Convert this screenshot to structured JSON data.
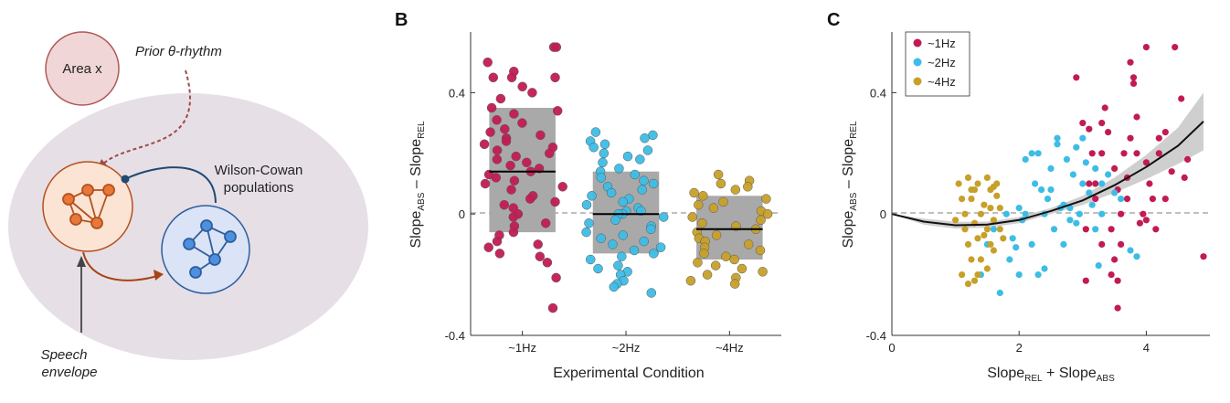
{
  "colors": {
    "c1hz": "#c21b54",
    "c2hz": "#3dbde6",
    "c4hz": "#c7a029",
    "box": "#a9a9a9",
    "band": "#cfcfcf",
    "ellipse": "#e6dfe6",
    "areaFill": "#f0d6d6",
    "areaStroke": "#b05858",
    "orangeFill": "#fbe4d4",
    "orangeNode": "#e8783a",
    "orangeStroke": "#b4501e",
    "blueFill": "#dbe3f6",
    "blueNode": "#4f8fdf",
    "blueStroke": "#2d5f9c",
    "teal": "#1f4a72",
    "rust": "#a64415"
  },
  "diagram": {
    "area_label": "Area x",
    "prior_label": "Prior θ-rhythm",
    "wc_line1": "Wilson-Cowan",
    "wc_line2": "populations",
    "speech_line1": "Speech",
    "speech_line2": "envelope",
    "icons": [
      "orange-network-icon",
      "blue-network-icon"
    ]
  },
  "chart_data": [
    {
      "panel": "B",
      "type": "scatter",
      "title": "",
      "xlabel": "Experimental Condition",
      "ylabel": {
        "main": "Slope",
        "sub1": "ABS",
        "mid": " – Slope",
        "sub2": "REL"
      },
      "ylim": [
        -0.4,
        0.6
      ],
      "yticks": [
        -0.4,
        0,
        0.4
      ],
      "ytick_labels": [
        "-0.4",
        "0",
        "0.4"
      ],
      "categories": [
        "~1Hz",
        "~2Hz",
        "~4Hz"
      ],
      "zero_line": "dashed",
      "boxes": [
        {
          "category": "~1Hz",
          "q1": -0.06,
          "median": 0.14,
          "q3": 0.35
        },
        {
          "category": "~2Hz",
          "q1": -0.13,
          "median": 0.0,
          "q3": 0.14
        },
        {
          "category": "~4Hz",
          "q1": -0.15,
          "median": -0.05,
          "q3": 0.06
        }
      ],
      "series": [
        {
          "name": "~1Hz",
          "values": [
            0.55,
            0.55,
            0.5,
            0.47,
            0.45,
            0.45,
            0.45,
            0.42,
            0.4,
            0.38,
            0.35,
            0.34,
            0.33,
            0.31,
            0.3,
            0.28,
            0.27,
            0.26,
            0.25,
            0.24,
            0.23,
            0.22,
            0.21,
            0.2,
            0.19,
            0.18,
            0.17,
            0.16,
            0.15,
            0.14,
            0.13,
            0.12,
            0.11,
            0.1,
            0.09,
            0.08,
            0.06,
            0.05,
            0.04,
            0.03,
            0.02,
            0.0,
            -0.01,
            -0.03,
            -0.04,
            -0.06,
            -0.07,
            -0.09,
            -0.1,
            -0.11,
            -0.13,
            -0.14,
            -0.16,
            -0.21,
            -0.31
          ]
        },
        {
          "name": "~2Hz",
          "values": [
            0.27,
            0.26,
            0.25,
            0.24,
            0.23,
            0.22,
            0.21,
            0.2,
            0.19,
            0.18,
            0.17,
            0.15,
            0.14,
            0.13,
            0.12,
            0.11,
            0.1,
            0.09,
            0.08,
            0.07,
            0.06,
            0.05,
            0.04,
            0.03,
            0.02,
            0.01,
            0.01,
            0.0,
            0.0,
            -0.01,
            -0.02,
            -0.03,
            -0.04,
            -0.05,
            -0.06,
            -0.07,
            -0.08,
            -0.09,
            -0.1,
            -0.11,
            -0.12,
            -0.13,
            -0.14,
            -0.15,
            -0.17,
            -0.18,
            -0.19,
            -0.2,
            -0.22,
            -0.23,
            -0.24,
            -0.26
          ]
        },
        {
          "name": "~4Hz",
          "values": [
            0.13,
            0.11,
            0.1,
            0.09,
            0.08,
            0.07,
            0.06,
            0.05,
            0.04,
            0.03,
            0.02,
            0.01,
            0.0,
            -0.01,
            -0.02,
            -0.03,
            -0.04,
            -0.05,
            -0.06,
            -0.07,
            -0.08,
            -0.09,
            -0.1,
            -0.11,
            -0.12,
            -0.13,
            -0.14,
            -0.15,
            -0.16,
            -0.17,
            -0.18,
            -0.19,
            -0.2,
            -0.21,
            -0.22,
            -0.23
          ]
        }
      ]
    },
    {
      "panel": "C",
      "type": "scatter",
      "title": "",
      "xlabel": {
        "main": "Slope",
        "sub1": "REL",
        "mid": " + Slope",
        "sub2": "ABS"
      },
      "ylabel": {
        "main": "Slope",
        "sub1": "ABS",
        "mid": " – Slope",
        "sub2": "REL"
      },
      "xlim": [
        0,
        5
      ],
      "ylim": [
        -0.4,
        0.6
      ],
      "xticks": [
        0,
        2,
        4
      ],
      "xtick_labels": [
        "0",
        "2",
        "4"
      ],
      "yticks": [
        -0.4,
        0,
        0.4
      ],
      "ytick_labels": [
        "-0.4",
        "0",
        "0.4"
      ],
      "zero_line": "dashed",
      "legend": {
        "position": "top-left",
        "entries": [
          "~1Hz",
          "~2Hz",
          "~4Hz"
        ]
      },
      "fit": {
        "type": "quadratic",
        "x": [
          0.0,
          0.5,
          1.0,
          1.5,
          2.0,
          2.5,
          3.0,
          3.5,
          4.0,
          4.5,
          4.9
        ],
        "y": [
          0.0,
          -0.025,
          -0.037,
          -0.035,
          -0.02,
          0.01,
          0.045,
          0.095,
          0.155,
          0.225,
          0.305
        ],
        "ci_low": [
          0.0,
          -0.035,
          -0.048,
          -0.045,
          -0.03,
          0.0,
          0.03,
          0.07,
          0.115,
          0.165,
          0.21
        ],
        "ci_high": [
          0.0,
          -0.015,
          -0.026,
          -0.025,
          -0.01,
          0.02,
          0.06,
          0.12,
          0.195,
          0.285,
          0.4
        ]
      },
      "series": [
        {
          "name": "~1Hz",
          "points": [
            [
              2.9,
              0.45
            ],
            [
              3.0,
              0.3
            ],
            [
              3.1,
              0.28
            ],
            [
              3.1,
              0.1
            ],
            [
              3.05,
              -0.05
            ],
            [
              3.2,
              0.05
            ],
            [
              3.3,
              0.2
            ],
            [
              3.3,
              0.3
            ],
            [
              3.35,
              0.35
            ],
            [
              3.4,
              0.27
            ],
            [
              3.45,
              -0.05
            ],
            [
              3.5,
              -0.15
            ],
            [
              3.5,
              0.15
            ],
            [
              3.55,
              -0.31
            ],
            [
              3.55,
              -0.22
            ],
            [
              3.6,
              -0.1
            ],
            [
              3.6,
              0.0
            ],
            [
              3.7,
              0.12
            ],
            [
              3.75,
              0.5
            ],
            [
              3.8,
              0.45
            ],
            [
              3.8,
              0.43
            ],
            [
              3.75,
              0.25
            ],
            [
              3.85,
              0.2
            ],
            [
              3.9,
              -0.03
            ],
            [
              3.95,
              0.0
            ],
            [
              4.0,
              0.55
            ],
            [
              4.0,
              0.17
            ],
            [
              4.05,
              0.1
            ],
            [
              4.1,
              0.05
            ],
            [
              4.15,
              -0.05
            ],
            [
              4.2,
              0.25
            ],
            [
              4.2,
              0.2
            ],
            [
              4.3,
              0.27
            ],
            [
              4.3,
              0.05
            ],
            [
              4.4,
              0.14
            ],
            [
              4.45,
              0.55
            ],
            [
              4.55,
              0.38
            ],
            [
              4.65,
              0.18
            ],
            [
              4.9,
              -0.14
            ],
            [
              3.05,
              -0.22
            ],
            [
              3.3,
              -0.1
            ],
            [
              3.45,
              -0.2
            ],
            [
              3.2,
              0.1
            ],
            [
              3.15,
              0.2
            ],
            [
              3.65,
              0.2
            ],
            [
              3.7,
              0.05
            ],
            [
              4.0,
              -0.02
            ],
            [
              3.85,
              0.32
            ],
            [
              3.55,
              0.08
            ],
            [
              4.6,
              0.12
            ]
          ]
        },
        {
          "name": "~2Hz",
          "points": [
            [
              1.4,
              -0.2
            ],
            [
              1.5,
              -0.1
            ],
            [
              1.6,
              -0.05
            ],
            [
              1.7,
              -0.26
            ],
            [
              1.8,
              0.0
            ],
            [
              1.85,
              -0.15
            ],
            [
              1.9,
              -0.08
            ],
            [
              2.0,
              0.02
            ],
            [
              2.0,
              -0.2
            ],
            [
              2.05,
              -0.02
            ],
            [
              2.1,
              0.0
            ],
            [
              2.2,
              -0.1
            ],
            [
              2.2,
              0.2
            ],
            [
              2.25,
              0.1
            ],
            [
              2.3,
              -0.2
            ],
            [
              2.3,
              0.2
            ],
            [
              2.4,
              0.0
            ],
            [
              2.4,
              -0.18
            ],
            [
              2.45,
              0.05
            ],
            [
              2.5,
              0.08
            ],
            [
              2.5,
              0.15
            ],
            [
              2.55,
              -0.05
            ],
            [
              2.6,
              0.25
            ],
            [
              2.65,
              0.02
            ],
            [
              2.7,
              -0.1
            ],
            [
              2.7,
              0.03
            ],
            [
              2.75,
              0.18
            ],
            [
              2.8,
              0.02
            ],
            [
              2.85,
              0.13
            ],
            [
              2.9,
              -0.03
            ],
            [
              2.9,
              0.22
            ],
            [
              2.95,
              0.0
            ],
            [
              3.0,
              0.25
            ],
            [
              3.0,
              0.1
            ],
            [
              3.05,
              0.17
            ],
            [
              3.1,
              0.07
            ],
            [
              3.15,
              0.03
            ],
            [
              3.2,
              -0.05
            ],
            [
              3.25,
              -0.17
            ],
            [
              3.3,
              0.1
            ],
            [
              3.3,
              0.0
            ],
            [
              3.4,
              0.13
            ],
            [
              3.5,
              0.07
            ],
            [
              3.6,
              0.05
            ],
            [
              3.75,
              -0.12
            ],
            [
              3.85,
              -0.14
            ],
            [
              2.1,
              0.18
            ],
            [
              2.6,
              0.23
            ],
            [
              2.35,
              0.08
            ],
            [
              1.95,
              -0.11
            ],
            [
              2.8,
              -0.02
            ],
            [
              3.2,
              0.15
            ]
          ]
        },
        {
          "name": "~4Hz",
          "points": [
            [
              1.05,
              0.1
            ],
            [
              1.1,
              0.05
            ],
            [
              1.15,
              -0.05
            ],
            [
              1.15,
              0.0
            ],
            [
              1.2,
              0.12
            ],
            [
              1.2,
              -0.1
            ],
            [
              1.25,
              -0.15
            ],
            [
              1.25,
              0.05
            ],
            [
              1.3,
              0.08
            ],
            [
              1.3,
              -0.03
            ],
            [
              1.35,
              0.1
            ],
            [
              1.35,
              -0.2
            ],
            [
              1.4,
              0.0
            ],
            [
              1.45,
              -0.07
            ],
            [
              1.5,
              0.12
            ],
            [
              1.5,
              -0.18
            ],
            [
              1.55,
              0.08
            ],
            [
              1.55,
              -0.1
            ],
            [
              1.6,
              -0.12
            ],
            [
              1.6,
              -0.02
            ],
            [
              1.65,
              0.06
            ],
            [
              1.65,
              0.1
            ],
            [
              1.7,
              0.02
            ],
            [
              1.1,
              -0.2
            ],
            [
              1.2,
              -0.23
            ],
            [
              1.3,
              -0.22
            ],
            [
              1.4,
              -0.15
            ],
            [
              1.45,
              0.03
            ],
            [
              1.55,
              0.02
            ],
            [
              1.7,
              -0.05
            ],
            [
              1.0,
              -0.02
            ],
            [
              1.25,
              0.08
            ],
            [
              1.35,
              -0.08
            ],
            [
              1.5,
              -0.05
            ],
            [
              1.6,
              0.09
            ],
            [
              1.75,
              -0.08
            ]
          ]
        }
      ]
    }
  ]
}
